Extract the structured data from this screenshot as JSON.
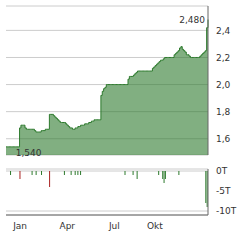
{
  "chart_data": [
    {
      "type": "area",
      "line_style": "step",
      "color": "#2d7a2d",
      "grid": true,
      "tick_labels": "y",
      "categories": [
        null,
        null,
        null,
        null,
        null,
        null,
        null,
        null,
        null,
        null,
        "Jan",
        null,
        null,
        null,
        null,
        null,
        null,
        null,
        null,
        null,
        null,
        null,
        null,
        null,
        null,
        null,
        null,
        null,
        null,
        null,
        null,
        null,
        null,
        null,
        null,
        null,
        null,
        null,
        null,
        null,
        null,
        null,
        null,
        null,
        null,
        "Apr",
        null,
        null,
        null,
        null,
        null,
        null,
        null,
        null,
        null,
        null,
        null,
        null,
        null,
        null,
        null,
        null,
        null,
        null,
        null,
        null,
        null,
        null,
        null,
        null,
        null,
        null,
        null,
        null,
        null,
        null,
        null,
        null,
        null,
        null,
        "Jul",
        null,
        null,
        null,
        null,
        null,
        null,
        null,
        null,
        null,
        null,
        null,
        null,
        null,
        null,
        null,
        null,
        null,
        null,
        null,
        null,
        null,
        null,
        null,
        null,
        null,
        null,
        null,
        null,
        null,
        "Okt",
        null,
        null,
        null,
        null,
        null,
        null,
        null,
        null,
        null,
        null,
        null,
        null,
        null,
        null,
        null,
        null,
        null,
        null,
        null,
        null,
        null,
        null,
        null,
        null,
        null,
        null,
        null,
        null,
        null,
        null,
        null,
        null,
        null,
        null,
        null,
        null,
        null,
        null,
        null
      ],
      "values": [
        1.54,
        1.54,
        1.54,
        1.54,
        1.54,
        1.54,
        1.54,
        1.54,
        1.54,
        1.54,
        1.68,
        1.7,
        1.7,
        1.7,
        1.68,
        1.67,
        1.67,
        1.67,
        1.67,
        1.67,
        1.67,
        1.66,
        1.65,
        1.65,
        1.65,
        1.65,
        1.66,
        1.66,
        1.66,
        1.67,
        1.67,
        1.67,
        1.78,
        1.78,
        1.78,
        1.77,
        1.76,
        1.75,
        1.74,
        1.73,
        1.72,
        1.72,
        1.72,
        1.72,
        1.71,
        1.7,
        1.69,
        1.68,
        1.68,
        1.67,
        1.67,
        1.68,
        1.68,
        1.69,
        1.69,
        1.7,
        1.7,
        1.7,
        1.71,
        1.71,
        1.71,
        1.72,
        1.72,
        1.73,
        1.73,
        1.74,
        1.74,
        1.74,
        1.74,
        1.74,
        1.92,
        1.95,
        1.97,
        1.98,
        2.0,
        2.0,
        2.0,
        2.0,
        2.0,
        2.0,
        2.0,
        2.0,
        2.0,
        2.0,
        2.0,
        2.0,
        2.0,
        2.0,
        2.0,
        2.0,
        2.04,
        2.06,
        2.06,
        2.06,
        2.07,
        2.08,
        2.09,
        2.1,
        2.1,
        2.1,
        2.1,
        2.1,
        2.1,
        2.1,
        2.1,
        2.1,
        2.1,
        2.1,
        2.12,
        2.13,
        2.14,
        2.15,
        2.16,
        2.17,
        2.18,
        2.18,
        2.19,
        2.2,
        2.2,
        2.2,
        2.2,
        2.2,
        2.2,
        2.2,
        2.22,
        2.23,
        2.24,
        2.25,
        2.27,
        2.28,
        2.26,
        2.25,
        2.24,
        2.22,
        2.22,
        2.21,
        2.2,
        2.2,
        2.2,
        2.2,
        2.2,
        2.2,
        2.2,
        2.21,
        2.22,
        2.23,
        2.24,
        2.25,
        2.42,
        2.48
      ],
      "ylim": [
        1.48,
        2.58
      ],
      "yticks": [
        {
          "value": 1.6,
          "label": "1,6"
        },
        {
          "value": 1.8,
          "label": "1,8"
        },
        {
          "value": 2.0,
          "label": "2,0"
        },
        {
          "value": 2.2,
          "label": "2,2"
        },
        {
          "value": 2.4,
          "label": "2,4"
        }
      ],
      "annotations": [
        {
          "text": "1,540",
          "x": 5
        },
        {
          "text": "2,480",
          "x": 149
        }
      ]
    },
    {
      "type": "bar",
      "grid": true,
      "categories": [
        null,
        null,
        null,
        null,
        null,
        null,
        null,
        null,
        null,
        null,
        "Jan",
        null,
        null,
        null,
        null,
        null,
        null,
        null,
        null,
        null,
        null,
        null,
        null,
        null,
        null,
        null,
        null,
        null,
        null,
        null,
        null,
        null,
        null,
        null,
        null,
        null,
        null,
        null,
        null,
        null,
        null,
        null,
        null,
        null,
        null,
        "Apr",
        null,
        null,
        null,
        null,
        null,
        null,
        null,
        null,
        null,
        null,
        null,
        null,
        null,
        null,
        null,
        null,
        null,
        null,
        null,
        null,
        null,
        null,
        null,
        null,
        null,
        null,
        null,
        null,
        null,
        null,
        null,
        null,
        null,
        null,
        "Jul",
        null,
        null,
        null,
        null,
        null,
        null,
        null,
        null,
        null,
        null,
        null,
        null,
        null,
        null,
        null,
        null,
        null,
        null,
        null,
        null,
        null,
        null,
        null,
        null,
        null,
        null,
        null,
        null,
        null,
        "Okt",
        null,
        null,
        null,
        null,
        null,
        null,
        null,
        null,
        null,
        null,
        null,
        null,
        null,
        null,
        null,
        null,
        null,
        null,
        null,
        null,
        null,
        null,
        null,
        null,
        null,
        null,
        null,
        null,
        null,
        null,
        null,
        null,
        null,
        null,
        null,
        null,
        null,
        null,
        null
      ],
      "values": [
        0,
        0,
        0,
        -1,
        0,
        0,
        0,
        0,
        0,
        0,
        -2,
        0,
        0,
        0,
        0,
        0,
        0,
        0,
        0,
        -1,
        0,
        0,
        -1,
        0,
        0,
        0,
        -1,
        0,
        0,
        0,
        0,
        0,
        -4,
        0,
        0,
        0,
        0,
        0,
        0,
        0,
        0,
        0,
        0,
        -1,
        0,
        0,
        0,
        0,
        -1,
        0,
        0,
        -1,
        0,
        -1,
        0,
        -1,
        0,
        0,
        0,
        0,
        0,
        0,
        0,
        0,
        0,
        0,
        0,
        0,
        0,
        0,
        0,
        0,
        0,
        0,
        0,
        0,
        0,
        0,
        0,
        0,
        0,
        0,
        0,
        0,
        0,
        0,
        0,
        0,
        -1,
        0,
        0,
        0,
        0,
        0,
        -1,
        0,
        0,
        -2,
        0,
        0,
        0,
        0,
        0,
        0,
        0,
        0,
        0,
        0,
        0,
        0,
        0,
        0,
        0,
        -1,
        0,
        0,
        -2,
        -3,
        -2,
        0,
        0,
        0,
        0,
        0,
        0,
        0,
        0,
        0,
        -1,
        0,
        0,
        0,
        0,
        0,
        0,
        0,
        0,
        0,
        0,
        0,
        0,
        0,
        0,
        0,
        0,
        0,
        0,
        0,
        -8,
        -9
      ],
      "colors": [
        "#2d7a2d",
        "#2d7a2d",
        "#2d7a2d",
        "#2d7a2d",
        "#2d7a2d",
        "#2d7a2d",
        "#2d7a2d",
        "#2d7a2d",
        "#2d7a2d",
        "#2d7a2d",
        "#aa2222",
        "#2d7a2d",
        "#2d7a2d",
        "#2d7a2d",
        "#2d7a2d",
        "#2d7a2d",
        "#2d7a2d",
        "#2d7a2d",
        "#2d7a2d",
        "#2d7a2d",
        "#2d7a2d",
        "#2d7a2d",
        "#2d7a2d",
        "#2d7a2d",
        "#2d7a2d",
        "#2d7a2d",
        "#2d7a2d",
        "#2d7a2d",
        "#2d7a2d",
        "#2d7a2d",
        "#2d7a2d",
        "#2d7a2d",
        "#aa2222",
        "#2d7a2d",
        "#2d7a2d",
        "#2d7a2d",
        "#2d7a2d",
        "#2d7a2d",
        "#2d7a2d",
        "#2d7a2d",
        "#2d7a2d",
        "#2d7a2d",
        "#2d7a2d",
        "#2d7a2d",
        "#2d7a2d",
        "#2d7a2d",
        "#2d7a2d",
        "#2d7a2d",
        "#2d7a2d",
        "#2d7a2d",
        "#2d7a2d",
        "#2d7a2d",
        "#2d7a2d",
        "#2d7a2d",
        "#2d7a2d",
        "#2d7a2d",
        "#2d7a2d",
        "#2d7a2d",
        "#2d7a2d",
        "#2d7a2d",
        "#2d7a2d",
        "#2d7a2d",
        "#2d7a2d",
        "#2d7a2d",
        "#2d7a2d",
        "#2d7a2d",
        "#2d7a2d",
        "#2d7a2d",
        "#2d7a2d",
        "#2d7a2d",
        "#2d7a2d",
        "#2d7a2d",
        "#2d7a2d",
        "#2d7a2d",
        "#2d7a2d",
        "#2d7a2d",
        "#2d7a2d",
        "#2d7a2d",
        "#2d7a2d",
        "#2d7a2d",
        "#2d7a2d",
        "#2d7a2d",
        "#2d7a2d",
        "#2d7a2d",
        "#2d7a2d",
        "#2d7a2d",
        "#2d7a2d",
        "#2d7a2d",
        "#2d7a2d",
        "#2d7a2d",
        "#2d7a2d",
        "#2d7a2d",
        "#2d7a2d",
        "#2d7a2d",
        "#2d7a2d",
        "#2d7a2d",
        "#2d7a2d",
        "#2d7a2d",
        "#2d7a2d",
        "#2d7a2d",
        "#2d7a2d",
        "#2d7a2d",
        "#2d7a2d",
        "#2d7a2d",
        "#2d7a2d",
        "#2d7a2d",
        "#2d7a2d",
        "#2d7a2d",
        "#2d7a2d",
        "#2d7a2d",
        "#2d7a2d",
        "#2d7a2d",
        "#2d7a2d",
        "#2d7a2d",
        "#2d7a2d",
        "#2d7a2d",
        "#2d7a2d",
        "#2d7a2d",
        "#2d7a2d",
        "#2d7a2d",
        "#2d7a2d",
        "#2d7a2d",
        "#2d7a2d",
        "#2d7a2d",
        "#2d7a2d",
        "#2d7a2d",
        "#2d7a2d",
        "#2d7a2d",
        "#2d7a2d",
        "#2d7a2d",
        "#2d7a2d",
        "#2d7a2d",
        "#2d7a2d",
        "#2d7a2d",
        "#2d7a2d",
        "#2d7a2d",
        "#2d7a2d",
        "#2d7a2d",
        "#2d7a2d",
        "#2d7a2d",
        "#2d7a2d",
        "#2d7a2d",
        "#2d7a2d",
        "#2d7a2d",
        "#2d7a2d",
        "#2d7a2d",
        "#2d7a2d",
        "#2d7a2d",
        "#2d7a2d",
        "#2d7a2d"
      ],
      "ylim": [
        -11,
        0.5
      ],
      "yticks": [
        {
          "value": -10,
          "label": "-10T"
        },
        {
          "value": -5,
          "label": "-5T"
        },
        {
          "value": 0,
          "label": "0T"
        }
      ]
    }
  ]
}
